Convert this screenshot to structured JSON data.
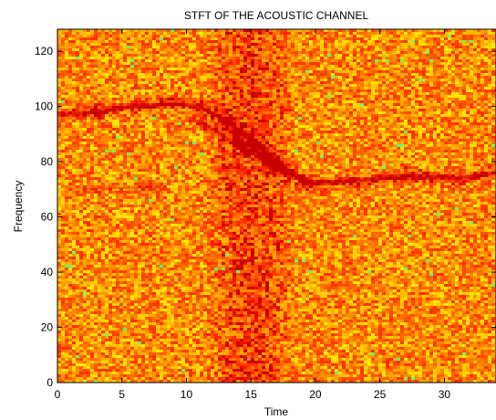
{
  "chart_data": {
    "type": "heatmap",
    "title": "STFT OF THE ACOUSTIC CHANNEL",
    "xlabel": "Time",
    "ylabel": "Frequency",
    "xlim": [
      0,
      34
    ],
    "ylim": [
      0,
      128
    ],
    "x_ticks": [
      0,
      5,
      10,
      15,
      20,
      25,
      30
    ],
    "y_ticks": [
      0,
      20,
      40,
      60,
      80,
      100,
      120
    ],
    "grid": false,
    "colormap": "autumn",
    "colors": {
      "low": "#ff0000",
      "mid": "#ff8000",
      "high": "#ffff00",
      "speckle": "#66ff66"
    },
    "tone_track": [
      {
        "x": 0,
        "y": 97
      },
      {
        "x": 3,
        "y": 98
      },
      {
        "x": 6,
        "y": 100
      },
      {
        "x": 9,
        "y": 101
      },
      {
        "x": 11,
        "y": 100
      },
      {
        "x": 13,
        "y": 95
      },
      {
        "x": 15,
        "y": 88
      },
      {
        "x": 16.5,
        "y": 82
      },
      {
        "x": 18,
        "y": 76
      },
      {
        "x": 20,
        "y": 72
      },
      {
        "x": 23,
        "y": 73
      },
      {
        "x": 27,
        "y": 75
      },
      {
        "x": 31,
        "y": 74
      },
      {
        "x": 34,
        "y": 76
      }
    ],
    "secondary_track": [
      {
        "x": 11,
        "y": 95
      },
      {
        "x": 13,
        "y": 89
      },
      {
        "x": 15,
        "y": 84
      },
      {
        "x": 17,
        "y": 78
      },
      {
        "x": 19,
        "y": 73
      }
    ],
    "faint_line": [
      {
        "x": 2,
        "y": 70
      },
      {
        "x": 8,
        "y": 71
      }
    ],
    "dark_column": {
      "x_center": 15,
      "x_halfwidth": 3.5
    }
  }
}
